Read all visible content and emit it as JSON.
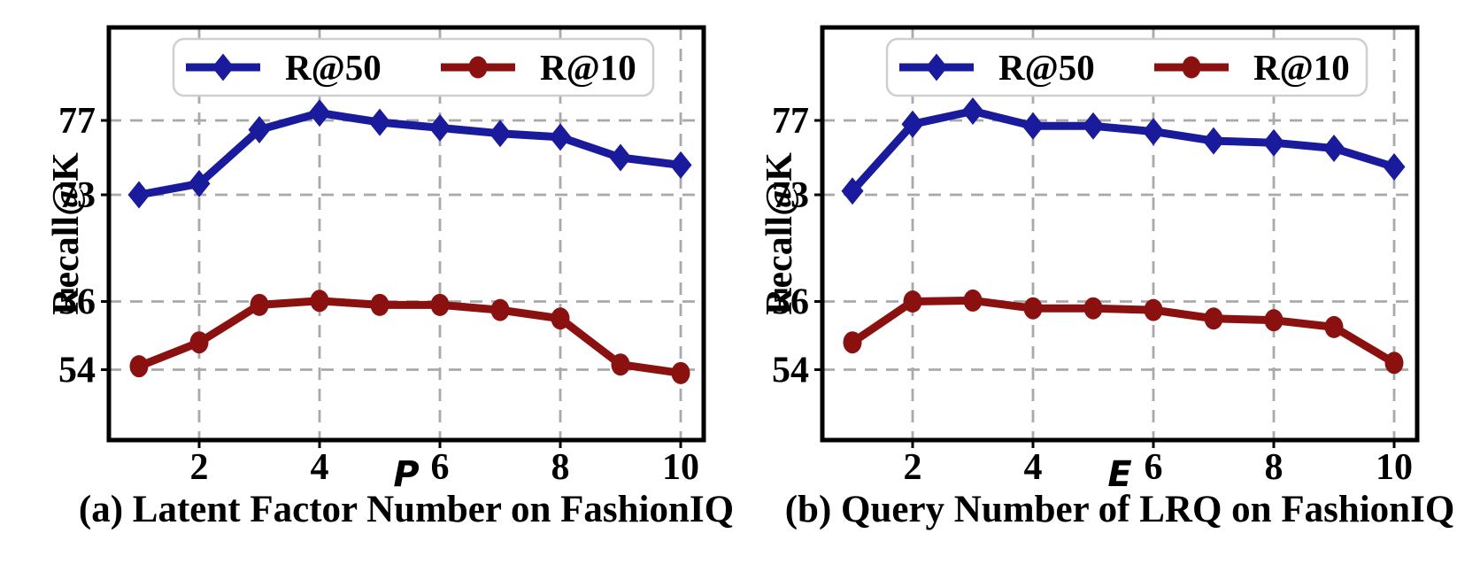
{
  "figure": {
    "background": "#ffffff",
    "axis_color": "#000000",
    "grid_color": "#a9a9a9",
    "legend": {
      "border_color": "#cfcfcf",
      "fill": "#ffffff",
      "items": [
        {
          "label": "R@50",
          "color": "#1a1a9c",
          "marker": "diamond"
        },
        {
          "label": "R@10",
          "color": "#8b1111",
          "marker": "circle"
        }
      ]
    }
  },
  "chart_data": [
    {
      "type": "line",
      "title": "(a) Latent Factor Number on FashionIQ",
      "xlabel": "P",
      "ylabel": "Recall@K",
      "grid": true,
      "legend_position": "upper center",
      "x": [
        1,
        2,
        3,
        4,
        5,
        6,
        7,
        8,
        9,
        10
      ],
      "x_tick_labels": [
        "2",
        "4",
        "6",
        "8",
        "10"
      ],
      "x_ticks": [
        2,
        4,
        6,
        8,
        10
      ],
      "y_tick_labels": [
        "77",
        "73",
        "56",
        "54"
      ],
      "y_ticks": [
        77,
        73,
        56,
        54
      ],
      "y_axis_note": "non-linear (broken) scale: upper region 73-77, lower region 54-56",
      "series": [
        {
          "name": "R@50",
          "marker": "diamond",
          "color": "#1a1a9c",
          "values": [
            73.0,
            73.6,
            76.5,
            77.4,
            76.9,
            76.6,
            76.3,
            76.1,
            75.0,
            74.6
          ]
        },
        {
          "name": "R@10",
          "marker": "circle",
          "color": "#8b1111",
          "values": [
            54.1,
            54.8,
            55.9,
            56.1,
            55.9,
            55.9,
            55.75,
            55.5,
            54.15,
            53.9
          ]
        }
      ]
    },
    {
      "type": "line",
      "title": "(b) Query Number of LRQ on FashionIQ",
      "xlabel": "E",
      "ylabel": "Recall@K",
      "grid": true,
      "legend_position": "upper center",
      "x": [
        1,
        2,
        3,
        4,
        5,
        6,
        7,
        8,
        9,
        10
      ],
      "x_tick_labels": [
        "2",
        "4",
        "6",
        "8",
        "10"
      ],
      "x_ticks": [
        2,
        4,
        6,
        8,
        10
      ],
      "y_tick_labels": [
        "77",
        "73",
        "56",
        "54"
      ],
      "y_ticks": [
        77,
        73,
        56,
        54
      ],
      "y_axis_note": "non-linear (broken) scale: upper region 73-77, lower region 54-56",
      "series": [
        {
          "name": "R@50",
          "marker": "diamond",
          "color": "#1a1a9c",
          "values": [
            73.2,
            76.8,
            77.5,
            76.7,
            76.7,
            76.4,
            75.9,
            75.8,
            75.5,
            74.5
          ]
        },
        {
          "name": "R@10",
          "marker": "circle",
          "color": "#8b1111",
          "values": [
            54.8,
            56.0,
            56.15,
            55.8,
            55.8,
            55.75,
            55.5,
            55.45,
            55.25,
            54.2
          ]
        }
      ]
    }
  ]
}
